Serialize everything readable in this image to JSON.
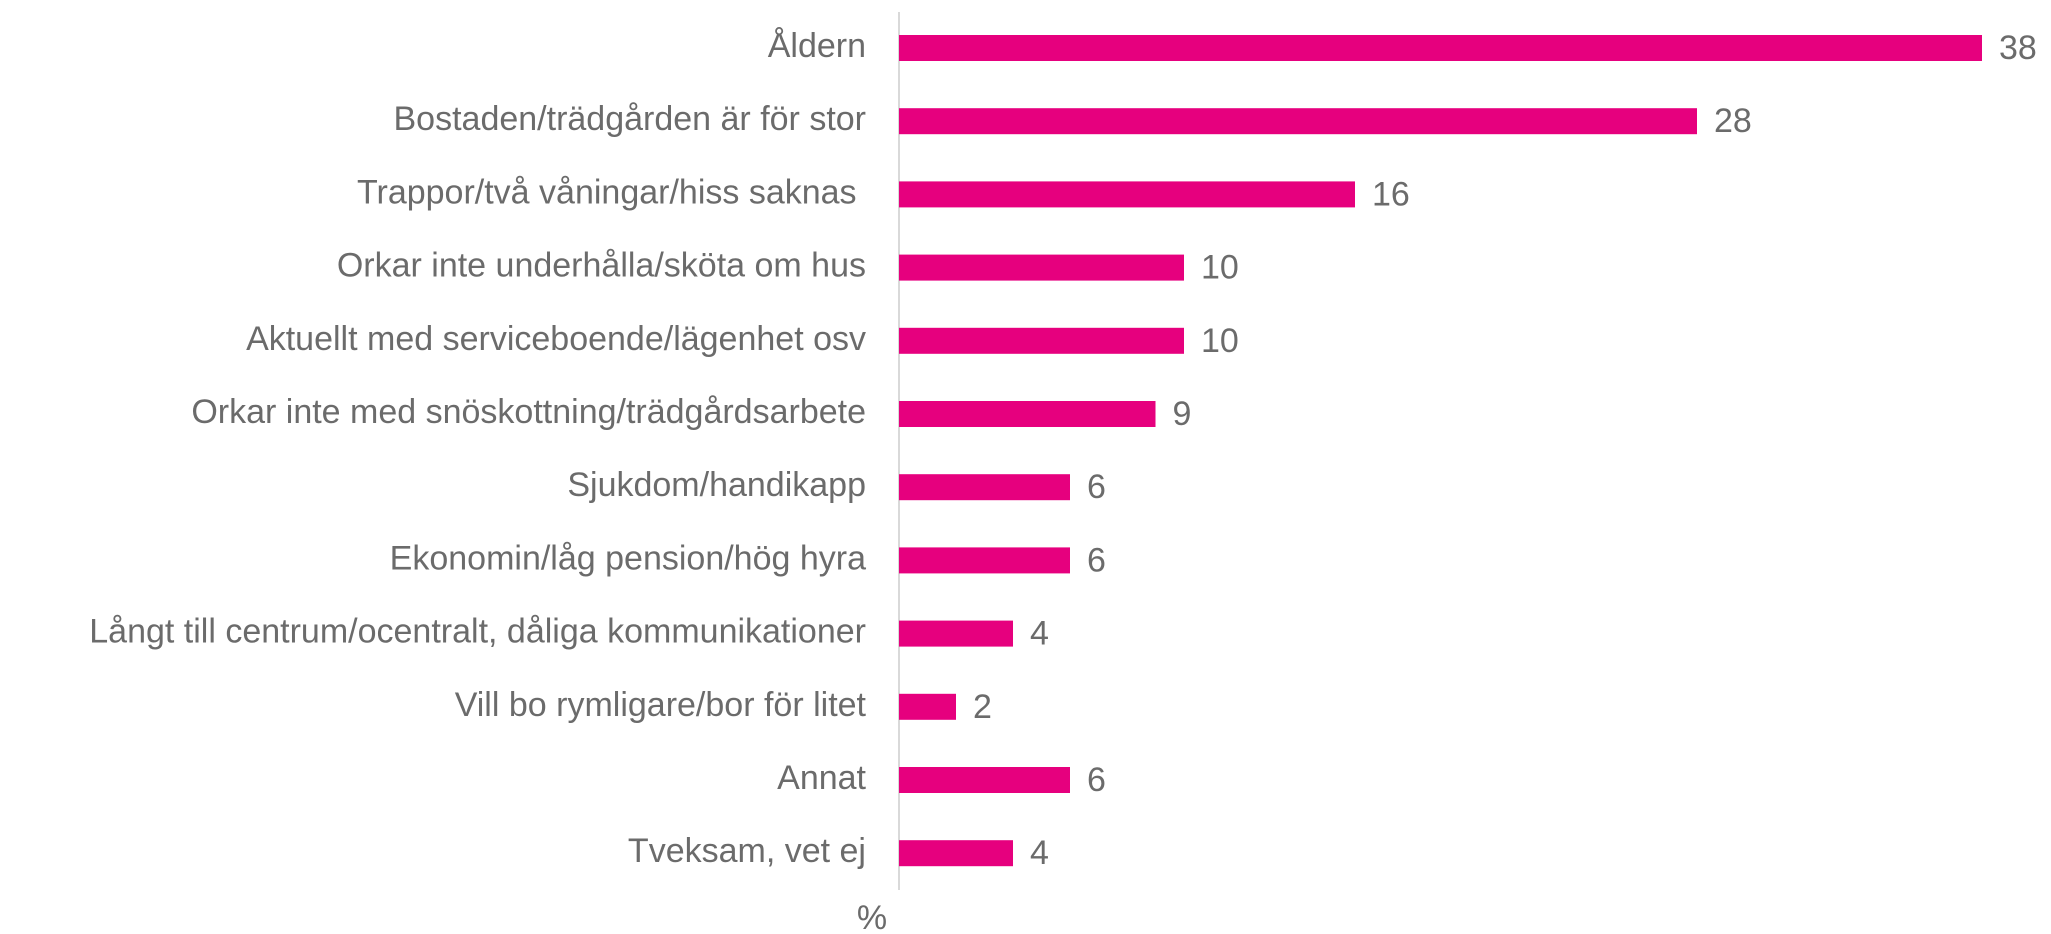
{
  "chart_data": {
    "type": "hbar",
    "categories": [
      "Åldern",
      "Bostaden/trädgården är för stor",
      "Trappor/två våningar/hiss saknas ",
      "Orkar inte underhålla/sköta om hus",
      "Aktuellt med serviceboende/lägenhet osv",
      "Orkar inte med snöskottning/trädgårdsarbete",
      "Sjukdom/handikapp",
      "Ekonomin/låg pension/hög hyra",
      "Långt till centrum/ocentralt, dåliga kommunikationer",
      "Vill bo rymligare/bor för litet",
      "Annat",
      "Tveksam, vet ej"
    ],
    "values": [
      38,
      28,
      16,
      10,
      10,
      9,
      6,
      6,
      4,
      2,
      6,
      4
    ],
    "color": "#e6007e",
    "xlabel": "%"
  }
}
